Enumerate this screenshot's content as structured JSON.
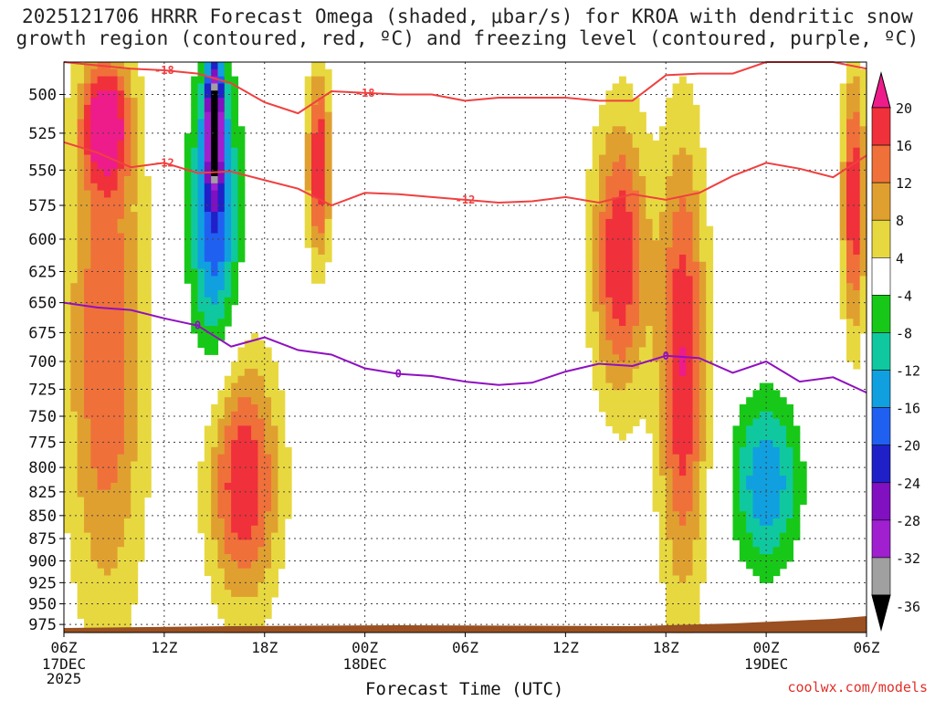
{
  "title": {
    "line1": "2025121706 HRRR Forecast Omega (shaded, μbar/s) for KROA with dendritic snow",
    "line2": "growth region (contoured, red, ºC) and freezing level (contoured, purple, ºC)"
  },
  "credit": "coolwx.com/models",
  "colors": {
    "omega_pos_20": "#ee1c8a",
    "omega_pos_16": "#f0303a",
    "omega_pos_12": "#f0703a",
    "omega_pos_8": "#e0a030",
    "omega_pos_4": "#e8d840",
    "omega_neg_4": "#18c818",
    "omega_neg_8": "#10c8a0",
    "omega_neg_12": "#10a0e0",
    "omega_neg_16": "#2060f0",
    "omega_neg_20": "#2020c8",
    "omega_neg_24": "#8010c0",
    "omega_neg_28": "#a020d0",
    "omega_neg_32": "#a0a0a0",
    "omega_neg_36": "#000000",
    "snow_growth_contour": "#f04040",
    "freezing_level_contour": "#9010c0",
    "terrain": "#9a5020"
  },
  "chart_data": {
    "type": "heatmap",
    "xlabel": "Forecast Time (UTC)",
    "ylabel": "",
    "x_ticks": [
      "06Z",
      "12Z",
      "18Z",
      "00Z",
      "06Z",
      "12Z",
      "18Z",
      "00Z",
      "06Z"
    ],
    "x_date_labels": [
      {
        "index": 0,
        "lines": [
          "17DEC",
          "2025"
        ]
      },
      {
        "index": 3,
        "lines": [
          "18DEC"
        ]
      },
      {
        "index": 7,
        "lines": [
          "19DEC"
        ]
      }
    ],
    "x_range_hours": [
      0,
      48
    ],
    "y_ticks": [
      500,
      525,
      550,
      575,
      600,
      625,
      650,
      675,
      700,
      725,
      750,
      775,
      800,
      825,
      850,
      875,
      900,
      925,
      950,
      975
    ],
    "y_range_hpa": [
      985,
      480
    ],
    "y_scale": "log-pressure",
    "colorbar": {
      "labels": [
        "20",
        "16",
        "12",
        "8",
        "4",
        "-4",
        "-8",
        "-12",
        "-16",
        "-20",
        "-24",
        "-28",
        "-32",
        "-36"
      ],
      "units": "μbar/s"
    },
    "contours": {
      "snow_growth_minus12": {
        "label": "-12",
        "hours": [
          0,
          2,
          4,
          6,
          8,
          10,
          12,
          14,
          16,
          18,
          20,
          22,
          24,
          26,
          28,
          30,
          32,
          34,
          36,
          38,
          40,
          42,
          44,
          46,
          48
        ],
        "pressure": [
          531,
          538,
          548,
          545,
          552,
          551,
          557,
          563,
          575,
          566,
          567,
          569,
          571,
          573,
          572,
          569,
          573,
          567,
          571,
          566,
          554,
          545,
          549,
          555,
          540
        ]
      },
      "snow_growth_minus18": {
        "label": "-18",
        "hours": [
          0,
          2,
          4,
          6,
          8,
          10,
          12,
          14,
          16,
          18,
          20,
          22,
          24,
          26,
          28,
          30,
          32,
          34,
          36,
          38,
          40,
          42,
          44,
          46,
          48
        ],
        "pressure": [
          480,
          482,
          484,
          485,
          487,
          493,
          505,
          512,
          498,
          499,
          500,
          500,
          504,
          502,
          502,
          502,
          504,
          504,
          488,
          487,
          487,
          480,
          480,
          480,
          484
        ]
      },
      "freezing_level_0": {
        "label": "0",
        "hours": [
          0,
          2,
          4,
          6,
          8,
          10,
          12,
          14,
          16,
          18,
          20,
          22,
          24,
          26,
          28,
          30,
          32,
          34,
          36,
          38,
          40,
          42,
          44,
          46,
          48
        ],
        "pressure": [
          650,
          654,
          656,
          663,
          669,
          687,
          679,
          690,
          694,
          706,
          711,
          713,
          718,
          721,
          719,
          709,
          702,
          704,
          695,
          697,
          710,
          700,
          718,
          714,
          728
        ]
      }
    },
    "omega_cells": [
      {
        "t0": 0,
        "t1": 5,
        "p0": 480,
        "p1": 985,
        "value": 16
      },
      {
        "t0": 1,
        "t1": 4,
        "p0": 480,
        "p1": 560,
        "value": 20
      },
      {
        "t0": 8.5,
        "t1": 13,
        "p0": 690,
        "p1": 960,
        "value": 20
      },
      {
        "t0": 7.5,
        "t1": 10.5,
        "p0": 480,
        "p1": 700,
        "value": -20
      },
      {
        "t0": 8.5,
        "t1": 9.5,
        "p0": 480,
        "p1": 560,
        "value": -36
      },
      {
        "t0": 14.5,
        "t1": 16,
        "p0": 480,
        "p1": 620,
        "value": 20
      },
      {
        "t0": 31.5,
        "t1": 35,
        "p0": 510,
        "p1": 740,
        "value": 20
      },
      {
        "t0": 35.5,
        "t1": 38.5,
        "p0": 520,
        "p1": 950,
        "value": 20
      },
      {
        "t0": 40,
        "t1": 44,
        "p0": 730,
        "p1": 910,
        "value": -16
      },
      {
        "t0": 46.5,
        "t1": 48,
        "p0": 480,
        "p1": 680,
        "value": 20
      }
    ]
  }
}
